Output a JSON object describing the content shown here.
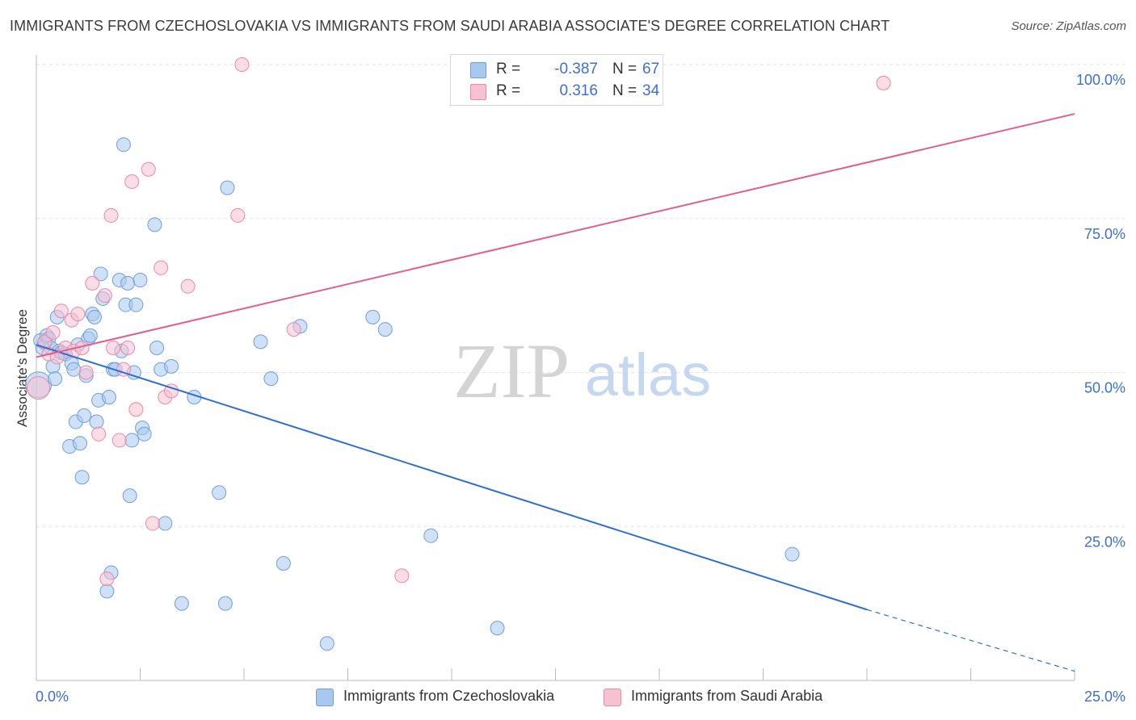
{
  "header": {
    "title": "IMMIGRANTS FROM CZECHOSLOVAKIA VS IMMIGRANTS FROM SAUDI ARABIA ASSOCIATE'S DEGREE CORRELATION CHART",
    "source": "Source: ZipAtlas.com"
  },
  "watermark": {
    "zip": "ZIP",
    "atlas": "atlas"
  },
  "stats": [
    {
      "r_label": "R =",
      "r_value": "-0.387",
      "n_label": "N =",
      "n_value": "67",
      "color": "#a8c8f0",
      "border": "#6f9fd8"
    },
    {
      "r_label": "R =",
      "r_value": "0.316",
      "n_label": "N =",
      "n_value": "34",
      "color": "#f7c1d2",
      "border": "#e889a8"
    }
  ],
  "legend": [
    {
      "label": "Immigrants from Czechoslovakia",
      "color": "#a8c8f0",
      "border": "#6f9fd8"
    },
    {
      "label": "Immigrants from Saudi Arabia",
      "color": "#f7c1d2",
      "border": "#e889a8"
    }
  ],
  "chart_data": {
    "type": "scatter",
    "title": "IMMIGRANTS FROM CZECHOSLOVAKIA VS IMMIGRANTS FROM SAUDI ARABIA ASSOCIATE'S DEGREE CORRELATION CHART",
    "xlabel": "",
    "ylabel": "Associate's Degree",
    "xlim": [
      0,
      25
    ],
    "ylim": [
      0,
      100
    ],
    "x_tick_labels": [
      "0.0%",
      "25.0%"
    ],
    "y_tick_labels": [
      "100.0%",
      "75.0%",
      "50.0%",
      "25.0%"
    ],
    "y_ticks": [
      100,
      75,
      50,
      25
    ],
    "grid": true,
    "legend_position": "bottom",
    "series": [
      {
        "name": "Immigrants from Czechoslovakia",
        "color": "#6f9fd8",
        "fill": "#a8c8f0",
        "trend": {
          "x": [
            0,
            20,
            25
          ],
          "y": [
            54.5,
            11.5,
            1.5
          ],
          "solid_until": 20,
          "color": "#2f6fd0"
        },
        "points": [
          [
            0.05,
            48
          ],
          [
            0.1,
            55.2
          ],
          [
            0.2,
            54.8
          ],
          [
            0.25,
            56
          ],
          [
            0.3,
            55.5
          ],
          [
            0.35,
            54
          ],
          [
            0.4,
            51
          ],
          [
            0.45,
            49
          ],
          [
            0.5,
            59
          ],
          [
            0.55,
            53.5
          ],
          [
            0.6,
            53.2
          ],
          [
            0.7,
            53
          ],
          [
            0.8,
            38
          ],
          [
            0.85,
            51.5
          ],
          [
            0.9,
            50.5
          ],
          [
            0.95,
            42
          ],
          [
            1.0,
            54.5
          ],
          [
            1.05,
            38.5
          ],
          [
            1.1,
            33
          ],
          [
            1.15,
            43
          ],
          [
            1.2,
            49.5
          ],
          [
            1.25,
            55.5
          ],
          [
            1.3,
            56
          ],
          [
            1.35,
            59.5
          ],
          [
            1.4,
            59
          ],
          [
            1.45,
            42
          ],
          [
            1.5,
            45.5
          ],
          [
            1.55,
            66
          ],
          [
            1.6,
            62
          ],
          [
            1.75,
            46
          ],
          [
            1.8,
            17.5
          ],
          [
            1.85,
            50.5
          ],
          [
            1.9,
            50.5
          ],
          [
            2.0,
            65
          ],
          [
            2.05,
            53.5
          ],
          [
            2.1,
            87
          ],
          [
            2.15,
            61
          ],
          [
            2.2,
            64.5
          ],
          [
            2.25,
            30
          ],
          [
            2.3,
            39
          ],
          [
            2.35,
            50
          ],
          [
            2.4,
            61
          ],
          [
            2.5,
            65
          ],
          [
            2.55,
            41
          ],
          [
            2.6,
            40
          ],
          [
            2.85,
            74
          ],
          [
            2.9,
            54
          ],
          [
            3.0,
            50.5
          ],
          [
            3.1,
            25.5
          ],
          [
            3.25,
            51
          ],
          [
            3.5,
            12.5
          ],
          [
            3.8,
            46
          ],
          [
            4.4,
            30.5
          ],
          [
            4.55,
            12.5
          ],
          [
            4.6,
            80
          ],
          [
            5.4,
            55
          ],
          [
            5.65,
            49
          ],
          [
            5.95,
            19
          ],
          [
            6.35,
            57.5
          ],
          [
            7.0,
            6
          ],
          [
            8.1,
            59
          ],
          [
            8.4,
            57
          ],
          [
            9.5,
            23.5
          ],
          [
            11.1,
            8.5
          ],
          [
            18.2,
            20.5
          ],
          [
            1.7,
            14.5
          ],
          [
            0.15,
            54
          ]
        ]
      },
      {
        "name": "Immigrants from Saudi Arabia",
        "color": "#e889a8",
        "fill": "#f7c1d2",
        "trend": {
          "x": [
            0,
            25
          ],
          "y": [
            52.5,
            92
          ],
          "solid_until": 25,
          "color": "#e0608a"
        },
        "points": [
          [
            0.05,
            47.5
          ],
          [
            0.2,
            55
          ],
          [
            0.3,
            53
          ],
          [
            0.4,
            56.5
          ],
          [
            0.5,
            52.5
          ],
          [
            0.6,
            60
          ],
          [
            0.7,
            54
          ],
          [
            0.85,
            58.5
          ],
          [
            0.9,
            53.5
          ],
          [
            1.0,
            59.5
          ],
          [
            1.1,
            54
          ],
          [
            1.2,
            50
          ],
          [
            1.35,
            64.5
          ],
          [
            1.5,
            40
          ],
          [
            1.65,
            62.5
          ],
          [
            1.7,
            16.5
          ],
          [
            1.8,
            75.5
          ],
          [
            1.85,
            54
          ],
          [
            2.0,
            39
          ],
          [
            2.1,
            50.5
          ],
          [
            2.3,
            81
          ],
          [
            2.4,
            44
          ],
          [
            2.7,
            83
          ],
          [
            2.8,
            25.5
          ],
          [
            3.0,
            67
          ],
          [
            3.1,
            46
          ],
          [
            3.25,
            47
          ],
          [
            3.65,
            64
          ],
          [
            4.85,
            75.5
          ],
          [
            4.95,
            100
          ],
          [
            6.2,
            57
          ],
          [
            8.8,
            17
          ],
          [
            20.4,
            97
          ],
          [
            2.2,
            54
          ]
        ]
      }
    ]
  }
}
